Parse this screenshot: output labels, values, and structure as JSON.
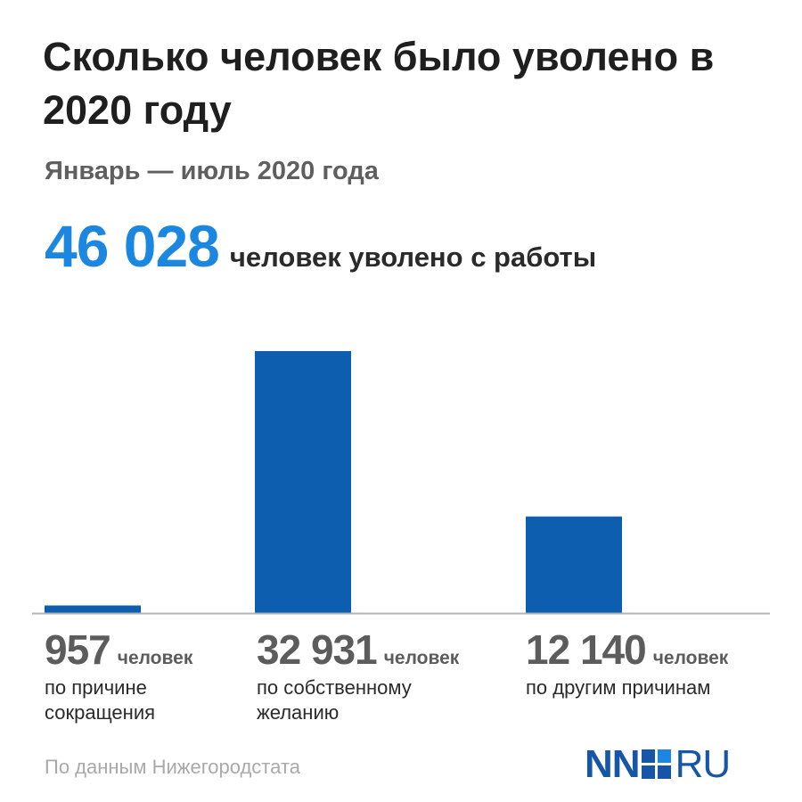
{
  "title": "Сколько человек было уволено в 2020 году",
  "subtitle": "Январь — июль 2020 года",
  "headline": {
    "total": "46 028",
    "text": "человек уволено с работы"
  },
  "chart_data": {
    "type": "bar",
    "categories": [
      "по причине сокращения",
      "по собственному желанию",
      "по другим причинам"
    ],
    "values": [
      957,
      32931,
      12140
    ],
    "value_labels": [
      "957",
      "32 931",
      "12 140"
    ],
    "unit_label": "человек",
    "descriptions": [
      [
        "по причине",
        "сокращения"
      ],
      [
        "по собственному",
        "желанию"
      ],
      [
        "по другим причинам"
      ]
    ],
    "colors": {
      "bar": "#0d5eae",
      "baseline": "#b5b5b5"
    },
    "grid": false
  },
  "source": "По данным Нижегородстата",
  "logo": {
    "left": "NN",
    "right": "RU",
    "colors": {
      "text": "#1656a8",
      "mark_dark": "#1656a8",
      "mark_light": "#1b87e0"
    }
  }
}
